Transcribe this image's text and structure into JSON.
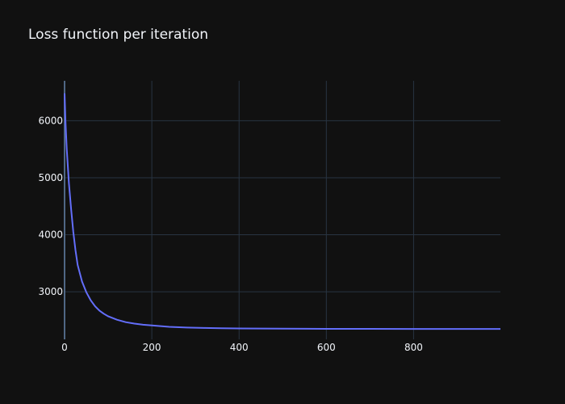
{
  "chart_data": {
    "type": "line",
    "title": "Loss function per iteration",
    "xlabel": "",
    "ylabel": "",
    "xlim": [
      0,
      999
    ],
    "ylim": [
      2166,
      6700
    ],
    "x_ticks": [
      0,
      200,
      400,
      600,
      800
    ],
    "y_ticks": [
      3000,
      4000,
      5000,
      6000
    ],
    "grid": true,
    "legend": "none",
    "series": [
      {
        "color": "#636efa",
        "x": [
          0,
          2,
          5,
          10,
          15,
          20,
          25,
          30,
          40,
          50,
          60,
          70,
          80,
          90,
          100,
          120,
          140,
          160,
          180,
          200,
          240,
          280,
          320,
          360,
          400,
          500,
          600,
          700,
          800,
          900,
          999
        ],
        "y": [
          6480,
          6000,
          5500,
          4900,
          4450,
          4050,
          3730,
          3470,
          3180,
          2990,
          2850,
          2745,
          2670,
          2615,
          2570,
          2510,
          2468,
          2442,
          2423,
          2410,
          2385,
          2374,
          2366,
          2361,
          2358,
          2353,
          2351,
          2350,
          2349,
          2349,
          2348
        ]
      }
    ]
  }
}
